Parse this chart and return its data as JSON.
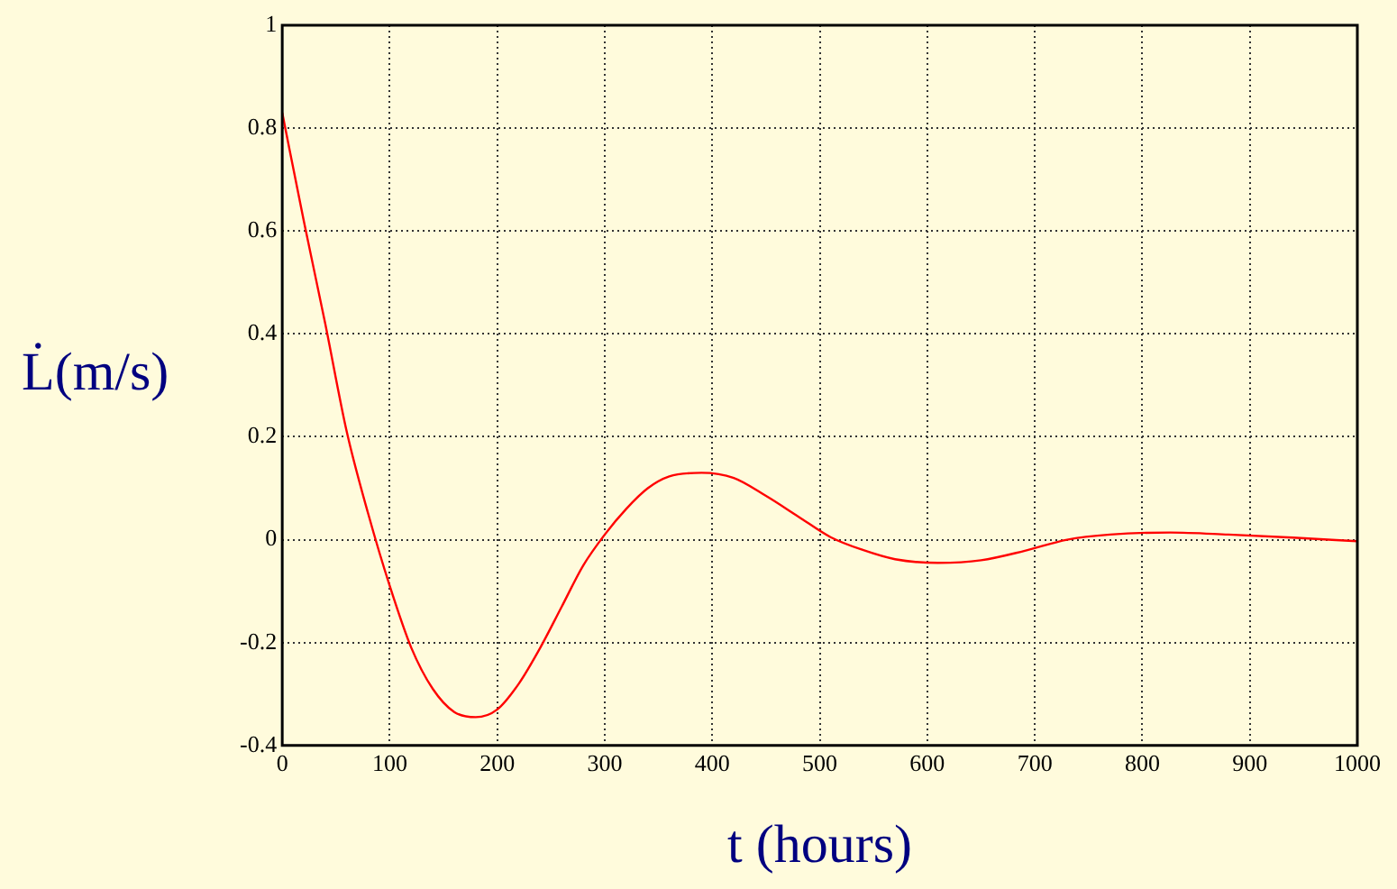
{
  "chart_data": {
    "type": "line",
    "xlabel": "t (hours)",
    "ylabel": "L̇(m/s)",
    "x": [
      0,
      20,
      40,
      60,
      80,
      100,
      120,
      140,
      160,
      180,
      200,
      220,
      240,
      260,
      280,
      300,
      320,
      340,
      360,
      390,
      420,
      450,
      480,
      510,
      540,
      570,
      610,
      650,
      690,
      730,
      770,
      826,
      880,
      940,
      1000
    ],
    "series": [
      {
        "color": "#ff0000",
        "values": [
          0.83,
          0.62,
          0.42,
          0.21,
          0.05,
          -0.09,
          -0.21,
          -0.29,
          -0.335,
          -0.345,
          -0.33,
          -0.28,
          -0.21,
          -0.13,
          -0.05,
          0.01,
          0.06,
          0.1,
          0.123,
          0.13,
          0.12,
          0.085,
          0.045,
          0.005,
          -0.02,
          -0.038,
          -0.045,
          -0.04,
          -0.022,
          0,
          0.01,
          0.014,
          0.01,
          0.004,
          -0.003
        ]
      }
    ],
    "xlim": [
      0,
      1000
    ],
    "xticks": [
      0,
      100,
      200,
      300,
      400,
      500,
      600,
      700,
      800,
      900,
      1000
    ],
    "ylim": [
      -0.4,
      1
    ],
    "yticks": [
      -0.4,
      -0.2,
      0,
      0.2,
      0.4,
      0.6,
      0.8,
      1
    ],
    "grid": true,
    "legend": false,
    "marker": "none",
    "line_style": "solid"
  }
}
